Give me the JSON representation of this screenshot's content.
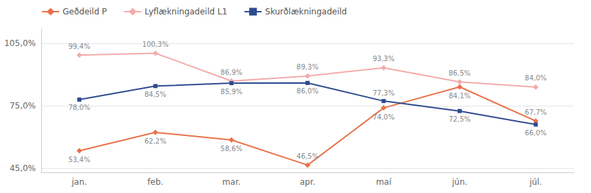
{
  "chart_data": {
    "type": "line",
    "categories": [
      "jan.",
      "feb.",
      "mar.",
      "apr.",
      "maí",
      "jún.",
      "júl."
    ],
    "series": [
      {
        "name": "Geðdeild P",
        "color": "#E8714A",
        "marker": "diamond",
        "values": [
          53.4,
          62.2,
          58.6,
          46.5,
          74.0,
          84.1,
          67.7
        ],
        "value_labels": [
          "53,4%",
          "62,2%",
          "58,6%",
          "46,5%",
          "74,0%",
          "84,1%",
          "67,7%"
        ]
      },
      {
        "name": "Lyflækningadeild L1",
        "color": "#F4AAAA",
        "marker": "diamond",
        "values": [
          99.4,
          100.3,
          86.9,
          89.3,
          93.3,
          86.5,
          84.0
        ],
        "value_labels": [
          "99,4%",
          "100,3%",
          "86,9%",
          "89,3%",
          "93,3%",
          "86,5%",
          "84,0%"
        ]
      },
      {
        "name": "Skurðlækningadeild",
        "color": "#2E4B8F",
        "marker": "square",
        "values": [
          78.0,
          84.5,
          85.9,
          86.0,
          77.3,
          72.5,
          66.0
        ],
        "value_labels": [
          "78,0%",
          "84,5%",
          "85,9%",
          "86,0%",
          "77,3%",
          "72,5%",
          "66,0%"
        ]
      }
    ],
    "ylim": [
      43.0,
      112.0
    ],
    "yticks": [
      {
        "value": 45.0,
        "label": "45,0%"
      },
      {
        "value": 75.0,
        "label": "75,0%"
      },
      {
        "value": 105.0,
        "label": "105,0%"
      }
    ],
    "grid": true,
    "data_labels": true,
    "legend": "upper left"
  }
}
